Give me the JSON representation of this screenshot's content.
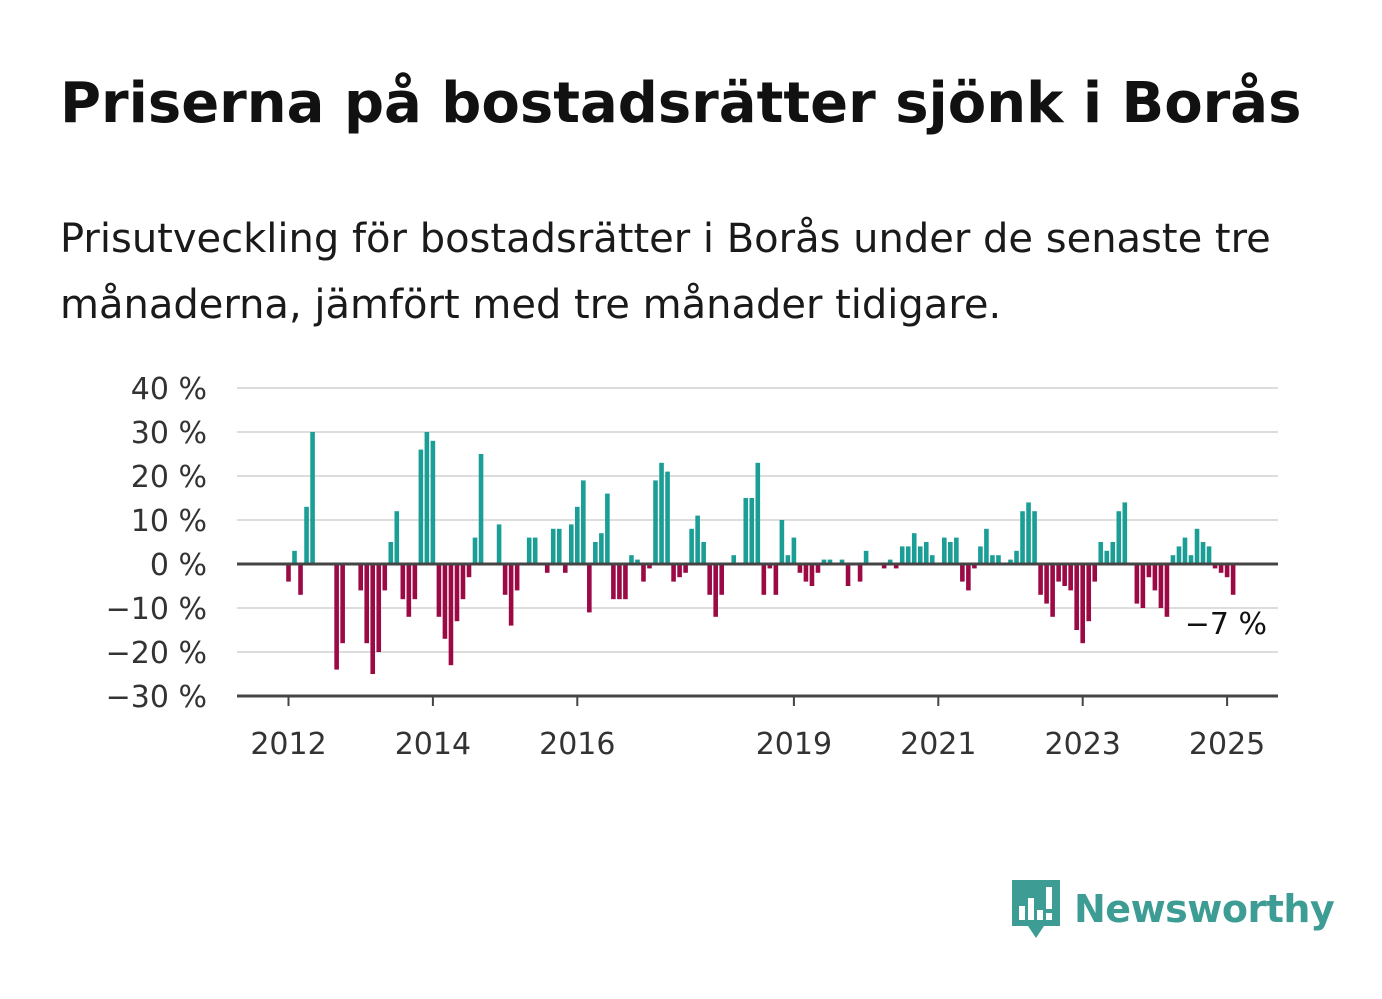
{
  "title": "Priserna på bostadsrätter sjönk i Borås",
  "subtitle": "Prisutveckling för bostadsrätter i Borås under de senaste tre månaderna, jämfört med tre månader tidigare.",
  "brand": {
    "name": "Newsworthy",
    "icon": "newsworthy-logo-icon",
    "color": "#3d9c94"
  },
  "colors": {
    "positive": "#1a9e96",
    "negative": "#9c0a46",
    "grid": "#dddddd",
    "axis": "#444444"
  },
  "chart_data": {
    "type": "bar",
    "title": "Priserna på bostadsrätter sjönk i Borås",
    "xlabel": "",
    "ylabel": "",
    "unit": "%",
    "ylim": [
      -30,
      40
    ],
    "yticks": [
      -30,
      -20,
      -10,
      0,
      10,
      20,
      30,
      40
    ],
    "ytick_labels": [
      "−30 %",
      "−20 %",
      "−10 %",
      "0 %",
      "10 %",
      "20 %",
      "30 %",
      "40 %"
    ],
    "xticks": [
      2012,
      2014,
      2016,
      2019,
      2021,
      2023,
      2025
    ],
    "xtick_labels": [
      "2012",
      "2014",
      "2016",
      "2019",
      "2021",
      "2023",
      "2025"
    ],
    "start": "2012-01",
    "frequency": "monthly",
    "grid": true,
    "legend": "none",
    "annotation": {
      "label": "−7 %",
      "month": "2025-01"
    },
    "values": [
      -4,
      3,
      -7,
      13,
      30,
      0,
      0,
      0,
      -24,
      -18,
      0,
      0,
      -6,
      -18,
      -25,
      -20,
      -6,
      5,
      12,
      -8,
      -12,
      -8,
      26,
      30,
      28,
      -12,
      -17,
      -23,
      -13,
      -8,
      -3,
      6,
      25,
      0,
      0,
      9,
      -7,
      -14,
      -6,
      0,
      6,
      6,
      0,
      -2,
      8,
      8,
      -2,
      9,
      13,
      19,
      -11,
      5,
      7,
      16,
      -8,
      -8,
      -8,
      2,
      1,
      -4,
      -1,
      19,
      23,
      21,
      -4,
      -3,
      -2,
      8,
      11,
      5,
      -7,
      -12,
      -7,
      0,
      2,
      0,
      15,
      15,
      23,
      -7,
      -1,
      -7,
      10,
      2,
      6,
      -2,
      -4,
      -5,
      -2,
      1,
      1,
      0,
      1,
      -5,
      0,
      -4,
      3,
      0,
      0,
      -1,
      1,
      -1,
      4,
      4,
      7,
      4,
      5,
      2,
      0,
      6,
      5,
      6,
      -4,
      -6,
      -1,
      4,
      8,
      2,
      2,
      0,
      1,
      3,
      12,
      14,
      12,
      -7,
      -9,
      -12,
      -4,
      -5,
      -6,
      -15,
      -18,
      -13,
      -4,
      5,
      3,
      5,
      12,
      14,
      0,
      -9,
      -10,
      -3,
      -6,
      -10,
      -12,
      2,
      4,
      6,
      2,
      8,
      5,
      4,
      -1,
      -2,
      -3,
      -7
    ]
  }
}
